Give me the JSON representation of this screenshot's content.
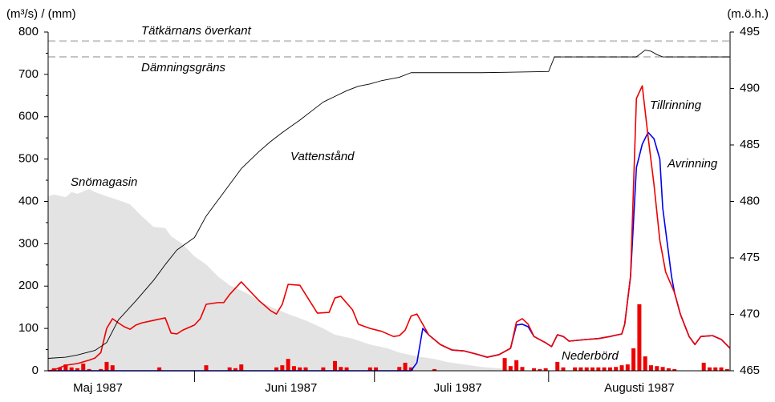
{
  "chart_data": {
    "type": "line",
    "y_label": "(m³/s) / (mm)",
    "y2_label": "(m.ö.h.)",
    "xlim": [
      7,
      123.5
    ],
    "xticks": [
      {
        "value": 15.5,
        "label": "Maj 1987"
      },
      {
        "value": 48.5,
        "label": "Juni 1987"
      },
      {
        "value": 77,
        "label": "Juli 1987"
      },
      {
        "value": 108,
        "label": "Augusti 1987"
      }
    ],
    "ylim": [
      0,
      800
    ],
    "yticks": [
      0,
      100,
      200,
      300,
      400,
      500,
      600,
      700,
      800
    ],
    "y2lim": [
      465,
      495
    ],
    "y2ticks": [
      465,
      470,
      475,
      480,
      485,
      490,
      495
    ],
    "reference_lines": [
      {
        "label": "Tätkärnans överkant",
        "value": 494.2,
        "axis": "y2",
        "color": "#c4c4c4"
      },
      {
        "label": "Dämningsgräns",
        "value": 492.8,
        "axis": "y2",
        "color": "#c4c4c4"
      }
    ],
    "series": [
      {
        "name": "Snömagasin",
        "kind": "area",
        "color": "#e3e3e3",
        "label_color": "#8c8c8c",
        "x": [
          7,
          8,
          10,
          11,
          12,
          14,
          15,
          17,
          19,
          21,
          23,
          25,
          27,
          28,
          30,
          32,
          34,
          36,
          38,
          41,
          43,
          45,
          48,
          51,
          54,
          56,
          59,
          62,
          65,
          67,
          70,
          73,
          75,
          78,
          81,
          84,
          88
        ],
        "values": [
          412,
          416,
          410,
          422,
          418,
          429,
          422,
          412,
          403,
          393,
          365,
          340,
          337,
          318,
          299,
          270,
          251,
          223,
          202,
          183,
          166,
          151,
          134,
          119,
          100,
          85,
          76,
          62,
          53,
          43,
          34,
          28,
          21,
          15,
          9,
          6,
          0
        ]
      },
      {
        "name": "Nederbörd",
        "kind": "bar",
        "color": "#ee0000",
        "label_color": "#ee0000",
        "x": [
          8,
          9,
          10,
          11,
          12,
          13,
          14,
          16,
          17,
          18,
          26,
          34,
          38,
          39,
          40,
          46,
          47,
          48,
          49,
          50,
          51,
          54,
          56,
          57,
          58,
          62,
          63,
          67,
          68,
          69,
          73,
          85,
          86,
          87,
          88,
          90,
          91,
          92,
          94,
          95,
          97,
          98,
          99,
          100,
          101,
          102,
          103,
          104,
          105,
          106,
          107,
          108,
          109,
          110,
          111,
          112,
          113,
          114,
          119,
          120,
          121,
          122,
          123
        ],
        "values": [
          6,
          8,
          15,
          8,
          6,
          17,
          4,
          4,
          21,
          13,
          8,
          13,
          8,
          6,
          15,
          8,
          13,
          28,
          11,
          8,
          8,
          8,
          23,
          9,
          8,
          8,
          8,
          9,
          19,
          8,
          4,
          30,
          11,
          25,
          9,
          6,
          4,
          6,
          21,
          8,
          8,
          8,
          8,
          8,
          8,
          8,
          8,
          9,
          13,
          15,
          53,
          157,
          34,
          13,
          11,
          9,
          6,
          4,
          19,
          8,
          8,
          8,
          4
        ]
      },
      {
        "name": "Avrinning",
        "kind": "line",
        "color": "#0000ee",
        "label_color": "#0000ee",
        "x": [
          7,
          69,
          70,
          71,
          72,
          74,
          76,
          78,
          80,
          82,
          84,
          86,
          87,
          88,
          89,
          90,
          92,
          93,
          94,
          95,
          96,
          99,
          101,
          103,
          105,
          105.5,
          106.5,
          107.5,
          108.5,
          109.5,
          110.5,
          111.5,
          112,
          113.5,
          114,
          115,
          116.5,
          117.5,
          118.5,
          120.5,
          122,
          123.5
        ],
        "values": [
          0,
          0,
          19,
          100,
          85,
          62,
          49,
          47,
          40,
          32,
          38,
          53,
          108,
          110,
          104,
          81,
          66,
          57,
          85,
          81,
          70,
          74,
          76,
          81,
          87,
          110,
          223,
          480,
          535,
          563,
          548,
          500,
          384,
          223,
          185,
          134,
          81,
          62,
          81,
          83,
          74,
          53
        ]
      },
      {
        "name": "Tillrinning",
        "kind": "line",
        "color": "#ee0000",
        "label_color": "#ee0000",
        "x": [
          7,
          8,
          10,
          12,
          14,
          15,
          16,
          17,
          18,
          19,
          20,
          21,
          22,
          23,
          25,
          27,
          28,
          29,
          30,
          32,
          33,
          34,
          36,
          37,
          38,
          40,
          41,
          43,
          45,
          46,
          47,
          48,
          50,
          51,
          53,
          55,
          56,
          57,
          59,
          60,
          62,
          64,
          66,
          67,
          68,
          69,
          70,
          71,
          72,
          74,
          76,
          78,
          80,
          82,
          84,
          86,
          87,
          88,
          89,
          90,
          92,
          93,
          94,
          95,
          96,
          99,
          101,
          103,
          105,
          105.5,
          106.5,
          107.5,
          108.5,
          109.5,
          110.5,
          111.5,
          112.5,
          114,
          115,
          116.5,
          117.5,
          118.5,
          120.5,
          122,
          123.5
        ],
        "values": [
          0,
          2,
          13,
          17,
          25,
          30,
          43,
          100,
          123,
          113,
          104,
          98,
          108,
          113,
          119,
          125,
          89,
          87,
          96,
          108,
          123,
          157,
          161,
          161,
          180,
          210,
          195,
          166,
          142,
          134,
          157,
          204,
          202,
          180,
          136,
          138,
          172,
          176,
          144,
          110,
          100,
          93,
          81,
          83,
          96,
          129,
          134,
          110,
          85,
          62,
          49,
          47,
          40,
          32,
          38,
          53,
          115,
          123,
          110,
          81,
          66,
          57,
          85,
          81,
          70,
          74,
          76,
          81,
          87,
          110,
          223,
          643,
          673,
          552,
          440,
          308,
          233,
          185,
          134,
          81,
          62,
          81,
          83,
          74,
          53
        ]
      },
      {
        "name": "Vattenstånd",
        "kind": "line",
        "axis": "y2",
        "color": "#000000",
        "label_color": "#000000",
        "x": [
          7,
          10,
          12,
          15,
          17,
          19,
          22,
          25,
          27,
          29,
          32,
          34,
          37,
          40,
          43,
          45,
          47,
          50,
          52,
          54,
          56,
          58,
          60,
          62,
          64,
          67,
          69,
          81,
          92.5,
          93.5,
          95,
          107.5,
          109,
          110,
          111,
          112,
          123.5
        ],
        "values": [
          466.1,
          466.2,
          466.4,
          466.8,
          467.5,
          469.5,
          471.2,
          473,
          474.4,
          475.7,
          476.8,
          478.7,
          480.8,
          482.9,
          484.4,
          485.3,
          486.1,
          487.2,
          488,
          488.8,
          489.3,
          489.8,
          490.2,
          490.4,
          490.7,
          491,
          491.4,
          491.4,
          491.5,
          492.8,
          492.8,
          492.8,
          493.4,
          493.3,
          493,
          492.8,
          492.8
        ]
      }
    ]
  }
}
